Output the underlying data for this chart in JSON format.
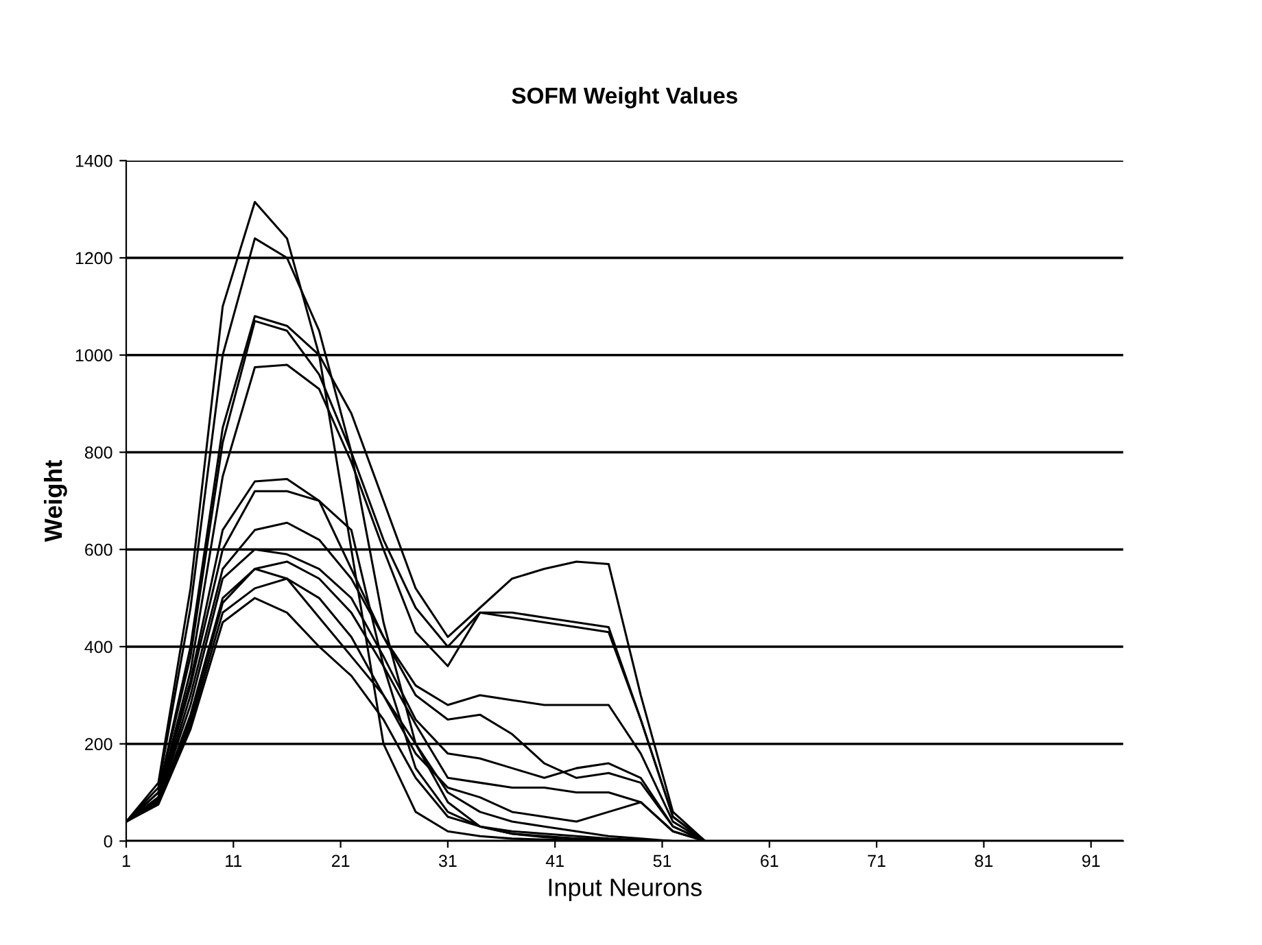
{
  "chart_data": {
    "type": "line",
    "title": "SOFM Weight Values",
    "xlabel": "Input Neurons",
    "ylabel": "Weight",
    "x": [
      1,
      4,
      7,
      10,
      13,
      16,
      19,
      22,
      25,
      28,
      31,
      34,
      37,
      40,
      43,
      46,
      49,
      52,
      55
    ],
    "xlim": [
      1,
      94
    ],
    "xticks": [
      1,
      11,
      21,
      31,
      41,
      51,
      61,
      71,
      81,
      91
    ],
    "ylim": [
      0,
      1400
    ],
    "yticks": [
      0,
      200,
      400,
      600,
      800,
      1000,
      1200,
      1400
    ],
    "grid": "y",
    "legend": false,
    "marker": "none",
    "line_style": "solid",
    "series": [
      {
        "color": "#000000",
        "values": [
          40,
          120,
          520,
          1100,
          1315,
          1240,
          1000,
          600,
          200,
          60,
          20,
          10,
          5,
          3,
          2,
          1,
          0,
          0,
          0
        ]
      },
      {
        "color": "#000000",
        "values": [
          40,
          110,
          480,
          1000,
          1240,
          1200,
          1050,
          800,
          450,
          200,
          80,
          30,
          15,
          8,
          5,
          3,
          1,
          0,
          0
        ]
      },
      {
        "color": "#000000",
        "values": [
          40,
          100,
          400,
          850,
          1080,
          1060,
          1000,
          880,
          700,
          520,
          420,
          480,
          540,
          560,
          575,
          570,
          300,
          60,
          0
        ]
      },
      {
        "color": "#000000",
        "values": [
          40,
          100,
          380,
          820,
          1070,
          1050,
          960,
          800,
          620,
          480,
          400,
          470,
          470,
          460,
          450,
          440,
          250,
          50,
          0
        ]
      },
      {
        "color": "#000000",
        "values": [
          40,
          90,
          350,
          750,
          975,
          980,
          930,
          780,
          600,
          430,
          360,
          470,
          460,
          450,
          440,
          430,
          250,
          50,
          0
        ]
      },
      {
        "color": "#000000",
        "values": [
          40,
          90,
          330,
          640,
          740,
          745,
          700,
          560,
          420,
          320,
          280,
          300,
          290,
          280,
          280,
          280,
          180,
          40,
          0
        ]
      },
      {
        "color": "#000000",
        "values": [
          40,
          90,
          320,
          600,
          720,
          720,
          700,
          640,
          360,
          150,
          60,
          30,
          15,
          10,
          5,
          3,
          1,
          0,
          0
        ]
      },
      {
        "color": "#000000",
        "values": [
          40,
          85,
          300,
          560,
          640,
          655,
          620,
          540,
          420,
          300,
          250,
          260,
          220,
          160,
          130,
          140,
          120,
          30,
          0
        ]
      },
      {
        "color": "#000000",
        "values": [
          40,
          85,
          280,
          540,
          600,
          590,
          560,
          500,
          380,
          250,
          180,
          170,
          150,
          130,
          150,
          160,
          130,
          30,
          0
        ]
      },
      {
        "color": "#000000",
        "values": [
          40,
          80,
          260,
          500,
          560,
          575,
          540,
          470,
          360,
          240,
          130,
          120,
          110,
          110,
          100,
          100,
          80,
          20,
          0
        ]
      },
      {
        "color": "#000000",
        "values": [
          40,
          80,
          240,
          470,
          520,
          540,
          500,
          420,
          300,
          180,
          110,
          90,
          60,
          50,
          40,
          60,
          80,
          20,
          0
        ]
      },
      {
        "color": "#000000",
        "values": [
          40,
          80,
          250,
          490,
          560,
          540,
          460,
          380,
          300,
          200,
          100,
          60,
          40,
          30,
          20,
          10,
          5,
          0,
          0
        ]
      },
      {
        "color": "#000000",
        "values": [
          40,
          75,
          230,
          450,
          500,
          470,
          400,
          340,
          250,
          130,
          50,
          30,
          20,
          15,
          10,
          5,
          2,
          0,
          0
        ]
      }
    ]
  }
}
